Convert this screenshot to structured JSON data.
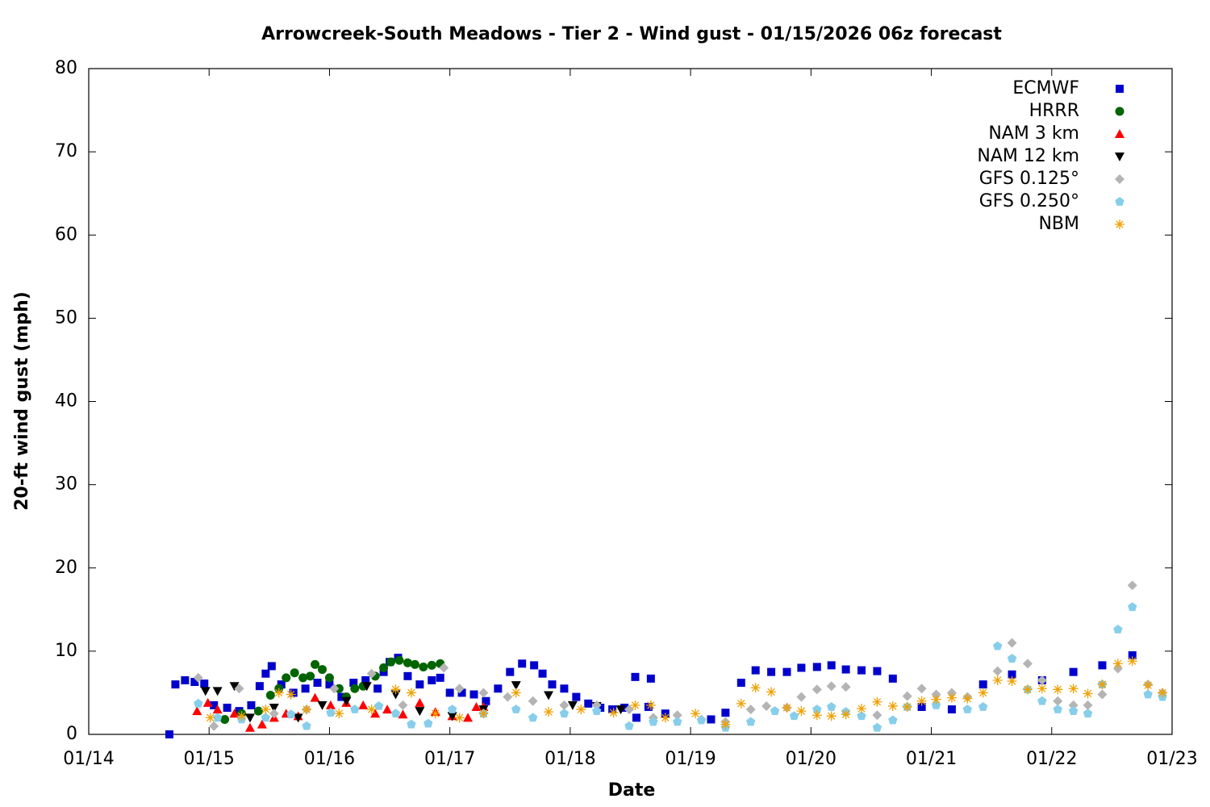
{
  "chart_data": {
    "type": "scatter",
    "title": "Arrowcreek-South Meadows - Tier 2 - Wind gust - 01/15/2026 06z forecast",
    "xlabel": "Date",
    "ylabel": "20-ft wind gust (mph)",
    "xlim": [
      0,
      9
    ],
    "xticks": [
      {
        "value": 0,
        "label": "01/14"
      },
      {
        "value": 1,
        "label": "01/15"
      },
      {
        "value": 2,
        "label": "01/16"
      },
      {
        "value": 3,
        "label": "01/17"
      },
      {
        "value": 4,
        "label": "01/18"
      },
      {
        "value": 5,
        "label": "01/19"
      },
      {
        "value": 6,
        "label": "01/20"
      },
      {
        "value": 7,
        "label": "01/21"
      },
      {
        "value": 8,
        "label": "01/22"
      },
      {
        "value": 9,
        "label": "01/23"
      }
    ],
    "ylim": [
      0,
      80
    ],
    "yticks": [
      0,
      10,
      20,
      30,
      40,
      50,
      60,
      70,
      80
    ],
    "legend": "top-right",
    "series": [
      {
        "name": "ECMWF",
        "color": "#0000cd",
        "marker": "square",
        "x": [
          0.67,
          0.72,
          0.8,
          0.88,
          0.96,
          1.04,
          1.15,
          1.25,
          1.35,
          1.42,
          1.47,
          1.52,
          1.6,
          1.7,
          1.8,
          1.9,
          2.0,
          2.1,
          2.2,
          2.3,
          2.4,
          2.45,
          2.5,
          2.57,
          2.65,
          2.75,
          2.85,
          2.92,
          3.0,
          3.1,
          3.2,
          3.3,
          3.4,
          3.5,
          3.6,
          3.7,
          3.77,
          3.85,
          3.95,
          4.05,
          4.15,
          4.25,
          4.35,
          4.45,
          4.55,
          4.65,
          4.54,
          4.67,
          4.79,
          5.17,
          5.29,
          5.42,
          5.54,
          5.67,
          5.8,
          5.92,
          6.05,
          6.17,
          6.29,
          6.42,
          6.55,
          6.68,
          6.92,
          7.17,
          7.43,
          7.67,
          7.92,
          8.18,
          8.42,
          8.67
        ],
        "values": [
          0,
          6,
          6.5,
          6.3,
          6.1,
          3.5,
          3.2,
          2.8,
          3.5,
          5.8,
          7.3,
          8.2,
          6,
          5,
          5.5,
          6.2,
          6,
          4.5,
          6.2,
          6.5,
          5.5,
          7.5,
          8.7,
          9.2,
          7,
          6,
          6.5,
          6.8,
          5,
          5,
          4.8,
          4,
          5.5,
          7.5,
          8.5,
          8.3,
          7.3,
          6,
          5.5,
          4.5,
          3.7,
          3.2,
          3,
          3.2,
          2,
          3.3,
          6.9,
          6.7,
          2.5,
          1.8,
          2.6,
          6.2,
          7.7,
          7.5,
          7.5,
          8,
          8.1,
          8.3,
          7.8,
          7.7,
          7.6,
          6.7,
          3.3,
          3,
          6,
          7.2,
          6.5,
          7.5,
          8.3,
          9.5
        ]
      },
      {
        "name": "HRRR",
        "color": "#006400",
        "marker": "circle",
        "x": [
          1.13,
          1.27,
          1.41,
          1.51,
          1.58,
          1.64,
          1.71,
          1.78,
          1.84,
          1.88,
          1.94,
          2.0,
          2.08,
          2.14,
          2.21,
          2.28,
          2.38,
          2.45,
          2.51,
          2.58,
          2.65,
          2.71,
          2.78,
          2.85,
          2.92
        ],
        "values": [
          1.8,
          2.5,
          2.8,
          4.7,
          5.5,
          6.8,
          7.4,
          6.8,
          7,
          8.4,
          7.8,
          6.8,
          5.5,
          4.5,
          5.5,
          5.8,
          7,
          8,
          8.7,
          8.9,
          8.6,
          8.4,
          8.1,
          8.3,
          8.5
        ]
      },
      {
        "name": "NAM 3 km",
        "color": "#ff0000",
        "marker": "triangle-up",
        "x": [
          0.9,
          0.99,
          1.07,
          1.21,
          1.34,
          1.44,
          1.54,
          1.64,
          1.74,
          1.88,
          2.01,
          2.14,
          2.28,
          2.38,
          2.48,
          2.61,
          2.75,
          2.88,
          3.02,
          3.15,
          3.22,
          3.28
        ],
        "values": [
          2.8,
          3.8,
          3,
          2.5,
          0.8,
          1.2,
          2,
          2.5,
          2.2,
          4.4,
          3.5,
          3.8,
          3.5,
          2.5,
          3,
          2.4,
          3.8,
          2.7,
          2.2,
          2,
          3.3,
          3.3
        ]
      },
      {
        "name": "NAM 12 km",
        "color": "#000000",
        "marker": "triangle-down",
        "x": [
          0.97,
          1.07,
          1.21,
          1.34,
          1.54,
          1.74,
          1.94,
          2.14,
          2.31,
          2.55,
          2.75,
          3.02,
          3.28,
          3.55,
          3.82,
          4.02,
          4.22,
          4.42
        ],
        "values": [
          5.2,
          5.2,
          5.8,
          2,
          3.2,
          2,
          3.5,
          4,
          5.8,
          4.8,
          2.8,
          2.2,
          3,
          5.9,
          4.7,
          3.5,
          3.4,
          3
        ]
      },
      {
        "name": "GFS 0.125°",
        "color": "#b4b4b4",
        "marker": "diamond",
        "x": [
          0.91,
          1.04,
          1.25,
          1.54,
          1.81,
          2.04,
          2.35,
          2.61,
          2.95,
          3.08,
          3.28,
          3.48,
          3.69,
          3.95,
          4.22,
          4.49,
          4.69,
          4.89,
          5.09,
          5.29,
          5.5,
          5.63,
          5.8,
          5.92,
          6.05,
          6.17,
          6.29,
          6.55,
          6.8,
          6.92,
          7.04,
          7.17,
          7.3,
          7.55,
          7.67,
          7.8,
          7.92,
          8.05,
          8.18,
          8.3,
          8.42,
          8.55,
          8.67,
          8.8,
          8.92
        ],
        "values": [
          6.8,
          1,
          5.5,
          2.5,
          3,
          5.5,
          7.3,
          3.5,
          8,
          5.5,
          5,
          4.5,
          4,
          3.5,
          3.5,
          3,
          2,
          2.3,
          1.8,
          1.5,
          3,
          3.4,
          3.2,
          4.5,
          5.4,
          5.8,
          5.7,
          2.3,
          4.6,
          5.5,
          4.8,
          5,
          4.5,
          7.6,
          11,
          8.5,
          6.5,
          4,
          3.5,
          3.5,
          4.8,
          7.9,
          17.9,
          6,
          5
        ]
      },
      {
        "name": "GFS 0.250°",
        "color": "#87ceeb",
        "marker": "pentagon",
        "x": [
          0.91,
          1.07,
          1.27,
          1.47,
          1.68,
          1.81,
          2.01,
          2.21,
          2.41,
          2.55,
          2.68,
          2.82,
          3.02,
          3.28,
          3.55,
          3.69,
          3.95,
          4.22,
          4.49,
          4.69,
          4.89,
          5.09,
          5.29,
          5.5,
          5.7,
          5.86,
          6.05,
          6.17,
          6.29,
          6.42,
          6.55,
          6.68,
          6.8,
          7.04,
          7.3,
          7.43,
          7.55,
          7.67,
          7.8,
          7.92,
          8.05,
          8.18,
          8.3,
          8.42,
          8.55,
          8.67,
          8.8,
          8.92
        ],
        "values": [
          3.7,
          2,
          1.8,
          2,
          2.4,
          1,
          2.6,
          3,
          3.4,
          2.5,
          1.2,
          1.3,
          3,
          2.5,
          3,
          2,
          2.5,
          2.8,
          1,
          1.5,
          1.5,
          1.7,
          0.8,
          1.5,
          2.8,
          2.2,
          3,
          3.3,
          2.7,
          2.2,
          0.8,
          1.7,
          3.3,
          3.5,
          3,
          3.3,
          10.6,
          9.1,
          5.4,
          4,
          3,
          2.8,
          2.5,
          6,
          12.6,
          15.3,
          4.8,
          4.5
        ]
      },
      {
        "name": "NBM",
        "color": "#f0a000",
        "marker": "asterisk",
        "x": [
          1.01,
          1.27,
          1.47,
          1.58,
          1.68,
          1.81,
          2.08,
          2.35,
          2.55,
          2.68,
          2.88,
          3.08,
          3.28,
          3.55,
          3.82,
          4.09,
          4.36,
          4.54,
          4.67,
          4.79,
          5.04,
          5.29,
          5.42,
          5.54,
          5.67,
          5.8,
          5.92,
          6.05,
          6.17,
          6.29,
          6.42,
          6.55,
          6.68,
          6.8,
          6.92,
          7.04,
          7.17,
          7.3,
          7.43,
          7.55,
          7.67,
          7.8,
          7.92,
          8.05,
          8.18,
          8.3,
          8.42,
          8.55,
          8.67,
          8.8,
          8.92
        ],
        "values": [
          2,
          2.2,
          3,
          5,
          4.8,
          3,
          2.5,
          3,
          5.4,
          5,
          2.5,
          2,
          2.5,
          5,
          2.7,
          3,
          2.6,
          3.5,
          3.5,
          2,
          2.5,
          1.2,
          3.7,
          5.6,
          5.1,
          3.2,
          2.8,
          2.3,
          2.2,
          2.4,
          3.1,
          3.9,
          3.4,
          3.3,
          4,
          4.2,
          4.4,
          4.3,
          5,
          6.5,
          6.4,
          5.4,
          5.5,
          5.4,
          5.5,
          4.9,
          6,
          8.5,
          8.8,
          5.9,
          5
        ]
      }
    ]
  }
}
